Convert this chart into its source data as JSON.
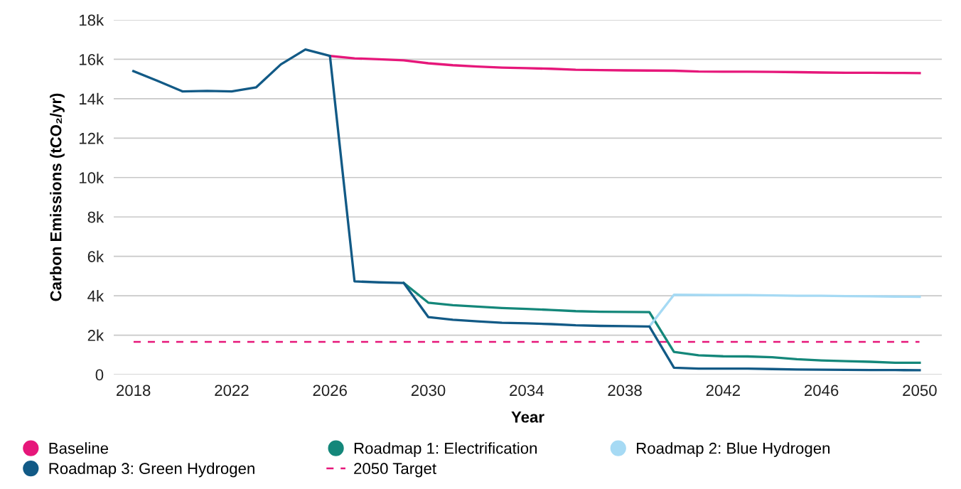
{
  "chart_data": {
    "type": "line",
    "xlabel": "Year",
    "ylabel": "Carbon Emissions (tCO₂/yr)",
    "xlim": [
      2017.2,
      2050.9
    ],
    "xticks": [
      2018,
      2022,
      2026,
      2030,
      2034,
      2038,
      2042,
      2046,
      2050
    ],
    "ylim": [
      0,
      18000
    ],
    "yticks": [
      0,
      {
        "value": 2000,
        "label": "2k"
      },
      {
        "value": 4000,
        "label": "4k"
      },
      {
        "value": 6000,
        "label": "6k"
      },
      {
        "value": 8000,
        "label": "8k"
      },
      {
        "value": 10000,
        "label": "10k"
      },
      {
        "value": 12000,
        "label": "12k"
      },
      {
        "value": 14000,
        "label": "14k"
      },
      {
        "value": 16000,
        "label": "16k"
      },
      {
        "value": 18000,
        "label": "18k"
      }
    ],
    "grid": "y",
    "legend": "bottom",
    "marker": "none",
    "line_style": "solid",
    "series": [
      {
        "name": "Baseline",
        "color": "#e6177a",
        "x": [
          2026,
          2027,
          2028,
          2029,
          2030,
          2031,
          2032,
          2033,
          2034,
          2035,
          2036,
          2037,
          2038,
          2039,
          2040,
          2041,
          2042,
          2043,
          2044,
          2045,
          2046,
          2047,
          2048,
          2049,
          2050
        ],
        "values": [
          16170,
          16050,
          16000,
          15950,
          15800,
          15700,
          15630,
          15580,
          15550,
          15520,
          15470,
          15450,
          15440,
          15430,
          15420,
          15380,
          15370,
          15370,
          15360,
          15350,
          15330,
          15320,
          15320,
          15310,
          15300
        ]
      },
      {
        "name": "Roadmap 1: Electrification",
        "color": "#14877a",
        "x": [
          2029,
          2030,
          2031,
          2032,
          2033,
          2034,
          2035,
          2036,
          2037,
          2038,
          2039,
          2040,
          2041,
          2042,
          2043,
          2044,
          2045,
          2046,
          2047,
          2048,
          2049,
          2050
        ],
        "values": [
          4650,
          3650,
          3520,
          3450,
          3380,
          3330,
          3280,
          3220,
          3190,
          3180,
          3170,
          1150,
          980,
          930,
          920,
          880,
          780,
          720,
          680,
          650,
          600,
          600
        ]
      },
      {
        "name": "Roadmap 2: Blue Hydrogen",
        "color": "#a6daf4",
        "x": [
          2039,
          2040,
          2041,
          2042,
          2043,
          2044,
          2045,
          2046,
          2047,
          2048,
          2049,
          2050
        ],
        "values": [
          2440,
          4050,
          4040,
          4030,
          4030,
          4020,
          4000,
          4000,
          3980,
          3970,
          3960,
          3950
        ]
      },
      {
        "name": "Roadmap 3: Green Hydrogen",
        "color": "#125a86",
        "x": [
          2018,
          2019,
          2020,
          2021,
          2022,
          2023,
          2024,
          2025,
          2026,
          2027,
          2028,
          2029,
          2030,
          2031,
          2032,
          2033,
          2034,
          2035,
          2036,
          2037,
          2038,
          2039,
          2040,
          2041,
          2042,
          2043,
          2044,
          2045,
          2046,
          2047,
          2048,
          2049,
          2050
        ],
        "values": [
          15400,
          14900,
          14370,
          14400,
          14370,
          14580,
          15740,
          16500,
          16170,
          4730,
          4680,
          4650,
          2920,
          2780,
          2700,
          2630,
          2600,
          2560,
          2500,
          2470,
          2460,
          2440,
          350,
          300,
          300,
          300,
          280,
          260,
          250,
          240,
          230,
          230,
          220
        ]
      }
    ],
    "ref_lines": [
      {
        "axis": "y",
        "value": 1660,
        "label": "2050 Target",
        "color": "#e6177a",
        "line_style": "dashed"
      }
    ]
  }
}
